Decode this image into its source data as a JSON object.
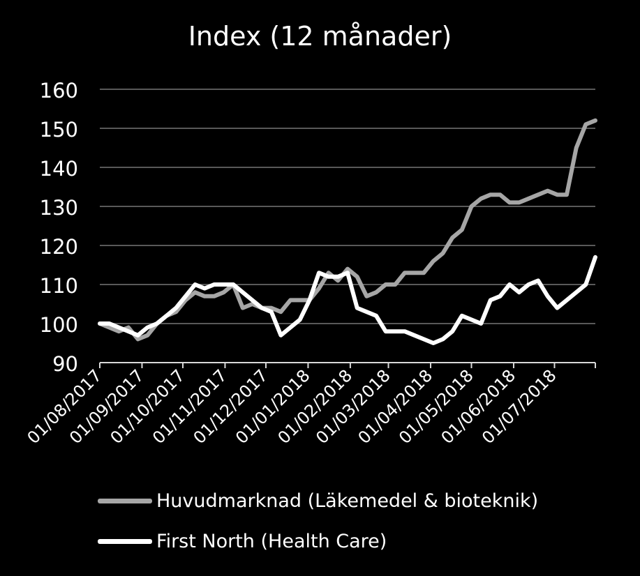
{
  "chart_data": {
    "type": "line",
    "title": "Index (12 månader)",
    "xlabel": "",
    "ylabel": "",
    "ylim": [
      90,
      160
    ],
    "yticks": [
      90,
      100,
      110,
      120,
      130,
      140,
      150,
      160
    ],
    "grid": true,
    "legend_position": "bottom",
    "x_tick_labels": [
      "01/08/2017",
      "01/09/2017",
      "01/10/2017",
      "01/11/2017",
      "01/12/2017",
      "01/01/2018",
      "01/02/2018",
      "01/03/2018",
      "01/04/2018",
      "01/05/2018",
      "01/06/2018",
      "01/07/2018"
    ],
    "x": [
      "2017-08-01",
      "2017-08-08",
      "2017-08-15",
      "2017-08-22",
      "2017-08-29",
      "2017-09-05",
      "2017-09-12",
      "2017-09-19",
      "2017-09-26",
      "2017-10-03",
      "2017-10-10",
      "2017-10-17",
      "2017-10-24",
      "2017-10-31",
      "2017-11-07",
      "2017-11-14",
      "2017-11-21",
      "2017-11-28",
      "2017-12-05",
      "2017-12-12",
      "2017-12-19",
      "2017-12-26",
      "2018-01-02",
      "2018-01-09",
      "2018-01-16",
      "2018-01-23",
      "2018-01-30",
      "2018-02-06",
      "2018-02-13",
      "2018-02-20",
      "2018-02-27",
      "2018-03-06",
      "2018-03-13",
      "2018-03-20",
      "2018-03-27",
      "2018-04-03",
      "2018-04-10",
      "2018-04-17",
      "2018-04-24",
      "2018-05-01",
      "2018-05-08",
      "2018-05-15",
      "2018-05-22",
      "2018-05-29",
      "2018-06-05",
      "2018-06-12",
      "2018-06-19",
      "2018-06-26",
      "2018-07-03",
      "2018-07-10",
      "2018-07-17",
      "2018-07-24",
      "2018-07-31"
    ],
    "series": [
      {
        "name": "Huvudmarknad (Läkemedel & bioteknik)",
        "color": "#a6a6a6",
        "values": [
          100,
          99,
          98,
          99,
          96,
          97,
          100,
          102,
          103,
          106,
          108,
          107,
          107,
          108,
          110,
          104,
          105,
          104,
          104,
          103,
          106,
          106,
          106,
          109,
          113,
          111,
          114,
          112,
          107,
          108,
          110,
          110,
          113,
          113,
          113,
          116,
          118,
          122,
          124,
          130,
          132,
          133,
          133,
          131,
          131,
          132,
          133,
          134,
          133,
          133,
          145,
          151,
          152
        ]
      },
      {
        "name": "First North (Health Care)",
        "color": "#ffffff",
        "values": [
          100,
          100,
          99,
          98,
          97,
          99,
          100,
          102,
          104,
          107,
          110,
          109,
          110,
          110,
          110,
          108,
          106,
          104,
          103,
          97,
          99,
          101,
          106,
          113,
          112,
          112,
          113,
          104,
          103,
          102,
          98,
          98,
          98,
          97,
          96,
          95,
          96,
          98,
          102,
          101,
          100,
          106,
          107,
          110,
          108,
          110,
          111,
          107,
          104,
          106,
          108,
          110,
          117
        ]
      }
    ]
  }
}
